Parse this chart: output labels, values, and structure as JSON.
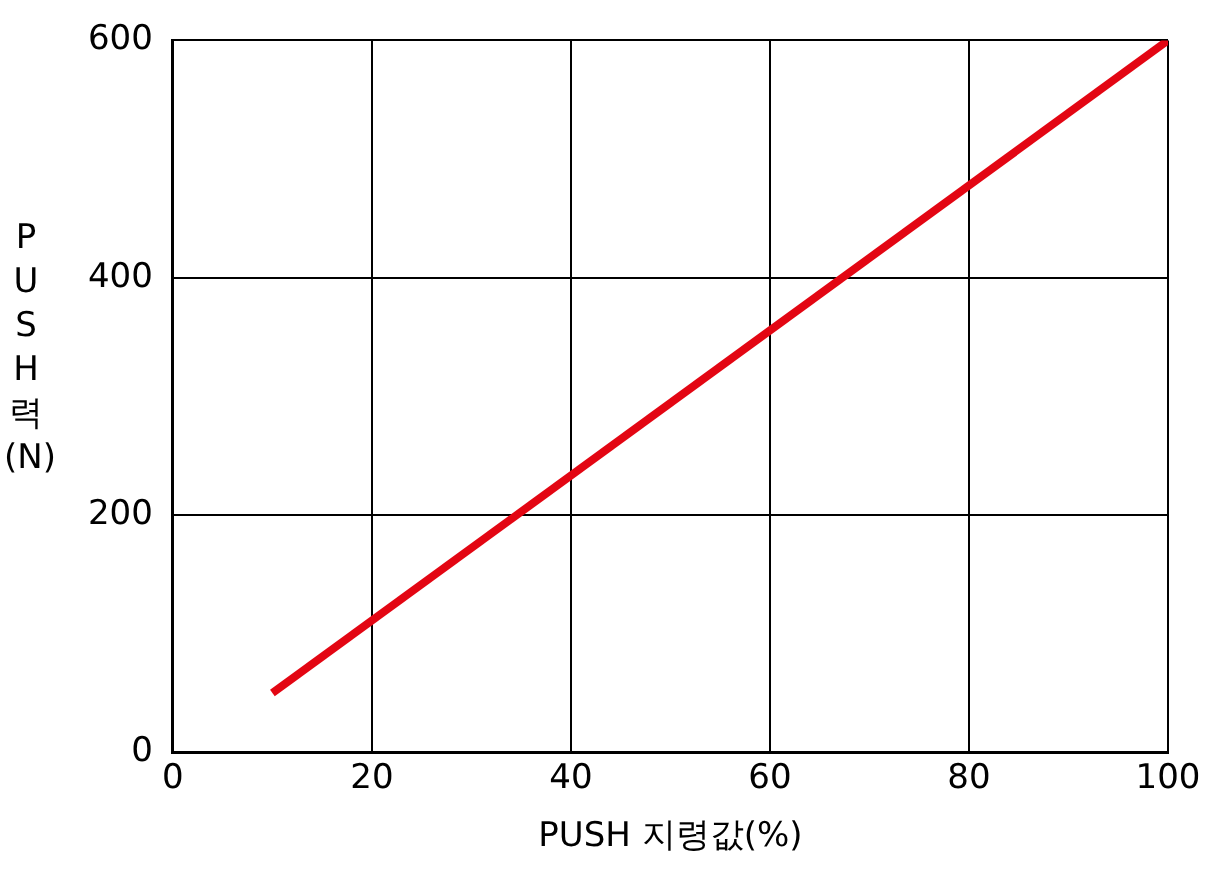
{
  "chart_data": {
    "type": "line",
    "xlabel": "PUSH 지령값(%)",
    "ylabel": "PUSH력 (N)",
    "x": [
      10,
      100
    ],
    "series": [
      {
        "color": "#e30613",
        "values": [
          50,
          600
        ]
      }
    ],
    "xlim": [
      0,
      100
    ],
    "xticks": [
      0,
      20,
      40,
      60,
      80,
      100
    ],
    "ylim": [
      0,
      600
    ],
    "yticks": [
      0,
      200,
      400,
      600
    ],
    "grid": true,
    "legend": false,
    "marker": "none",
    "line_style": "solid"
  }
}
